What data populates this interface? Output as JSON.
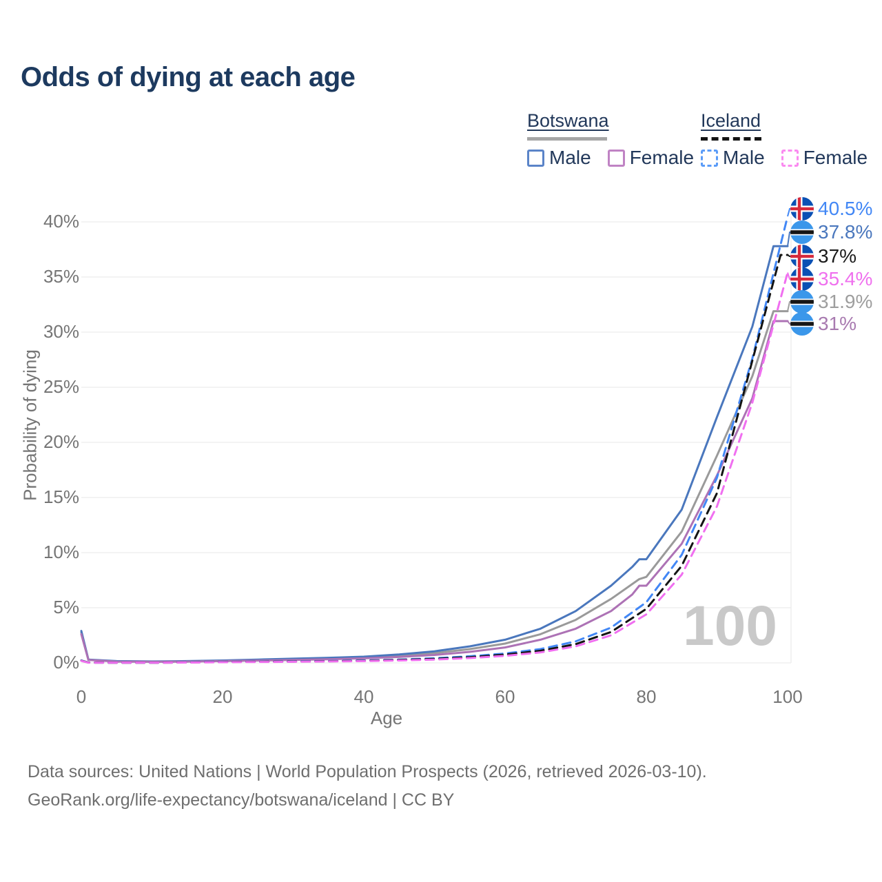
{
  "title": "Odds of dying at each age",
  "legend": {
    "groups": [
      {
        "label": "Botswana",
        "line_style": "solid",
        "line_color": "#a6a6a6",
        "items": [
          {
            "label": "Male",
            "swatch_color": "#5b84c8",
            "dashed": false
          },
          {
            "label": "Female",
            "swatch_color": "#c083c4",
            "dashed": false
          }
        ]
      },
      {
        "label": "Iceland",
        "line_style": "dashed",
        "line_color": "#141414",
        "items": [
          {
            "label": "Male",
            "swatch_color": "#5b9cf8",
            "dashed": true
          },
          {
            "label": "Female",
            "swatch_color": "#fa8af0",
            "dashed": true
          }
        ]
      }
    ]
  },
  "watermark_age": "100",
  "end_labels": [
    {
      "text": "40.5%",
      "value": 40.5,
      "flag": "iceland",
      "color": "#4287f5"
    },
    {
      "text": "37.8%",
      "value": 37.8,
      "flag": "botswana",
      "color": "#4a77bd"
    },
    {
      "text": "37%",
      "value": 37.0,
      "flag": "iceland",
      "color": "#1a1a1a"
    },
    {
      "text": "35.4%",
      "value": 35.4,
      "flag": "iceland",
      "color": "#ef70ee"
    },
    {
      "text": "31.9%",
      "value": 31.9,
      "flag": "botswana",
      "color": "#9e9e9e"
    },
    {
      "text": "31%",
      "value": 31.0,
      "flag": "botswana",
      "color": "#a87ab0"
    }
  ],
  "chart_data": {
    "type": "line",
    "title": "Odds of dying at each age",
    "xlabel": "Age",
    "ylabel": "Probability of dying",
    "xlim": [
      0,
      100
    ],
    "ylim": [
      0,
      41
    ],
    "grid": "horizontal",
    "legend_position": "top-right",
    "x_ticks": [
      {
        "value": 0,
        "label": "0"
      },
      {
        "value": 20,
        "label": "20"
      },
      {
        "value": 40,
        "label": "40"
      },
      {
        "value": 60,
        "label": "60"
      },
      {
        "value": 80,
        "label": "80"
      },
      {
        "value": 100,
        "label": "100"
      }
    ],
    "y_ticks": [
      {
        "value": 0,
        "label": "0%"
      },
      {
        "value": 5,
        "label": "5%"
      },
      {
        "value": 10,
        "label": "10%"
      },
      {
        "value": 15,
        "label": "15%"
      },
      {
        "value": 20,
        "label": "20%"
      },
      {
        "value": 25,
        "label": "25%"
      },
      {
        "value": 30,
        "label": "30%"
      },
      {
        "value": 35,
        "label": "35%"
      },
      {
        "value": 40,
        "label": "40%"
      }
    ],
    "series": [
      {
        "name": "Botswana Total",
        "slug": "botswana-total",
        "country": "Botswana",
        "sex": "total",
        "color": "#9a9a9a",
        "dashed": false,
        "end_value": 31.9,
        "points": [
          [
            0,
            2.75
          ],
          [
            1,
            0.28
          ],
          [
            5,
            0.14
          ],
          [
            10,
            0.12
          ],
          [
            15,
            0.14
          ],
          [
            20,
            0.19
          ],
          [
            25,
            0.26
          ],
          [
            30,
            0.33
          ],
          [
            35,
            0.4
          ],
          [
            40,
            0.49
          ],
          [
            45,
            0.65
          ],
          [
            50,
            0.88
          ],
          [
            55,
            1.25
          ],
          [
            60,
            1.75
          ],
          [
            65,
            2.6
          ],
          [
            70,
            3.9
          ],
          [
            75,
            5.8
          ],
          [
            79,
            7.6
          ],
          [
            80,
            7.8
          ],
          [
            85,
            11.9
          ],
          [
            90,
            18.8
          ],
          [
            95,
            26.0
          ],
          [
            98,
            31.9
          ],
          [
            100,
            31.9
          ]
        ]
      },
      {
        "name": "Botswana Male",
        "slug": "botswana-male",
        "country": "Botswana",
        "sex": "male",
        "color": "#4a77bd",
        "dashed": false,
        "end_value": 37.8,
        "points": [
          [
            0,
            2.9
          ],
          [
            1,
            0.3
          ],
          [
            5,
            0.16
          ],
          [
            10,
            0.13
          ],
          [
            15,
            0.16
          ],
          [
            20,
            0.22
          ],
          [
            25,
            0.3
          ],
          [
            30,
            0.38
          ],
          [
            35,
            0.46
          ],
          [
            40,
            0.56
          ],
          [
            45,
            0.76
          ],
          [
            50,
            1.05
          ],
          [
            55,
            1.5
          ],
          [
            60,
            2.1
          ],
          [
            65,
            3.1
          ],
          [
            70,
            4.7
          ],
          [
            75,
            7.0
          ],
          [
            78,
            8.7
          ],
          [
            79,
            9.4
          ],
          [
            80,
            9.4
          ],
          [
            85,
            13.9
          ],
          [
            90,
            22.3
          ],
          [
            95,
            30.5
          ],
          [
            98,
            37.8
          ],
          [
            100,
            37.8
          ]
        ]
      },
      {
        "name": "Botswana Female",
        "slug": "botswana-female",
        "country": "Botswana",
        "sex": "female",
        "color": "#ad72b5",
        "dashed": false,
        "end_value": 31.0,
        "points": [
          [
            0,
            2.6
          ],
          [
            1,
            0.26
          ],
          [
            5,
            0.12
          ],
          [
            10,
            0.1
          ],
          [
            15,
            0.12
          ],
          [
            20,
            0.16
          ],
          [
            25,
            0.21
          ],
          [
            30,
            0.27
          ],
          [
            35,
            0.33
          ],
          [
            40,
            0.41
          ],
          [
            45,
            0.54
          ],
          [
            50,
            0.72
          ],
          [
            55,
            1.0
          ],
          [
            60,
            1.4
          ],
          [
            65,
            2.1
          ],
          [
            70,
            3.1
          ],
          [
            75,
            4.7
          ],
          [
            78,
            6.2
          ],
          [
            79,
            7.0
          ],
          [
            80,
            7.0
          ],
          [
            85,
            10.8
          ],
          [
            90,
            17.0
          ],
          [
            95,
            24.0
          ],
          [
            98,
            31.0
          ],
          [
            100,
            31.0
          ]
        ]
      },
      {
        "name": "Iceland Male",
        "slug": "iceland-male",
        "country": "Iceland",
        "sex": "male",
        "color": "#4287f5",
        "dashed": true,
        "end_value": 40.5,
        "points": [
          [
            0,
            0.22
          ],
          [
            1,
            0.03
          ],
          [
            5,
            0.01
          ],
          [
            10,
            0.01
          ],
          [
            15,
            0.05
          ],
          [
            20,
            0.1
          ],
          [
            25,
            0.12
          ],
          [
            30,
            0.14
          ],
          [
            35,
            0.17
          ],
          [
            40,
            0.22
          ],
          [
            45,
            0.3
          ],
          [
            50,
            0.42
          ],
          [
            55,
            0.6
          ],
          [
            60,
            0.85
          ],
          [
            65,
            1.25
          ],
          [
            70,
            1.95
          ],
          [
            75,
            3.2
          ],
          [
            80,
            5.5
          ],
          [
            85,
            9.8
          ],
          [
            90,
            16.8
          ],
          [
            95,
            27.6
          ],
          [
            100,
            40.5
          ]
        ]
      },
      {
        "name": "Iceland Total",
        "slug": "iceland-total",
        "country": "Iceland",
        "sex": "total",
        "color": "#141414",
        "dashed": true,
        "end_value": 37.0,
        "points": [
          [
            0,
            0.2
          ],
          [
            1,
            0.03
          ],
          [
            5,
            0.01
          ],
          [
            10,
            0.01
          ],
          [
            15,
            0.04
          ],
          [
            20,
            0.08
          ],
          [
            25,
            0.1
          ],
          [
            30,
            0.12
          ],
          [
            35,
            0.15
          ],
          [
            40,
            0.19
          ],
          [
            45,
            0.26
          ],
          [
            50,
            0.36
          ],
          [
            55,
            0.52
          ],
          [
            60,
            0.75
          ],
          [
            65,
            1.1
          ],
          [
            70,
            1.7
          ],
          [
            75,
            2.8
          ],
          [
            80,
            4.9
          ],
          [
            85,
            8.8
          ],
          [
            90,
            15.4
          ],
          [
            99,
            37.0
          ],
          [
            100,
            37.0
          ]
        ]
      },
      {
        "name": "Iceland Female",
        "slug": "iceland-female",
        "country": "Iceland",
        "sex": "female",
        "color": "#f06ff0",
        "dashed": true,
        "end_value": 35.4,
        "points": [
          [
            0,
            0.18
          ],
          [
            1,
            0.02
          ],
          [
            5,
            0.01
          ],
          [
            10,
            0.01
          ],
          [
            15,
            0.03
          ],
          [
            20,
            0.06
          ],
          [
            25,
            0.08
          ],
          [
            30,
            0.1
          ],
          [
            35,
            0.13
          ],
          [
            40,
            0.16
          ],
          [
            45,
            0.22
          ],
          [
            50,
            0.3
          ],
          [
            55,
            0.44
          ],
          [
            60,
            0.64
          ],
          [
            65,
            0.95
          ],
          [
            70,
            1.5
          ],
          [
            75,
            2.5
          ],
          [
            80,
            4.4
          ],
          [
            85,
            8.0
          ],
          [
            90,
            14.2
          ],
          [
            95,
            23.6
          ],
          [
            100,
            35.4
          ]
        ]
      }
    ]
  },
  "footer": {
    "line1": "Data sources: United Nations | World Population Prospects (2026, retrieved 2026-03-10).",
    "line2": "GeoRank.org/life-expectancy/botswana/iceland | CC BY"
  }
}
